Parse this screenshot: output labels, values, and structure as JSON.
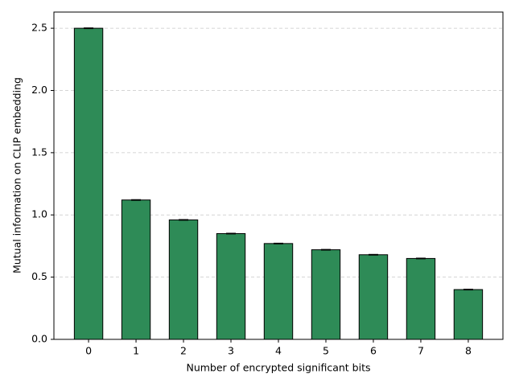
{
  "chart_data": {
    "type": "bar",
    "x_label": "Number of encrypted significant bits",
    "y_label": "Mutual information on CLIP embedding",
    "categories": [
      "0",
      "1",
      "2",
      "3",
      "4",
      "5",
      "6",
      "7",
      "8"
    ],
    "values": [
      2.5,
      1.12,
      0.96,
      0.85,
      0.77,
      0.72,
      0.68,
      0.65,
      0.4
    ],
    "errors": [
      0.003,
      0.003,
      0.003,
      0.003,
      0.003,
      0.003,
      0.003,
      0.003,
      0.003
    ],
    "color": "#2e8b57",
    "ylim": [
      0,
      2.63
    ],
    "yticks": [
      {
        "value": 0,
        "label": "0.0"
      },
      {
        "value": 0.5,
        "label": "0.5"
      },
      {
        "value": 1,
        "label": "1.0"
      },
      {
        "value": 1.5,
        "label": "1.5"
      },
      {
        "value": 2,
        "label": "2.0"
      },
      {
        "value": 2.5,
        "label": "2.5"
      }
    ],
    "grid": true
  }
}
